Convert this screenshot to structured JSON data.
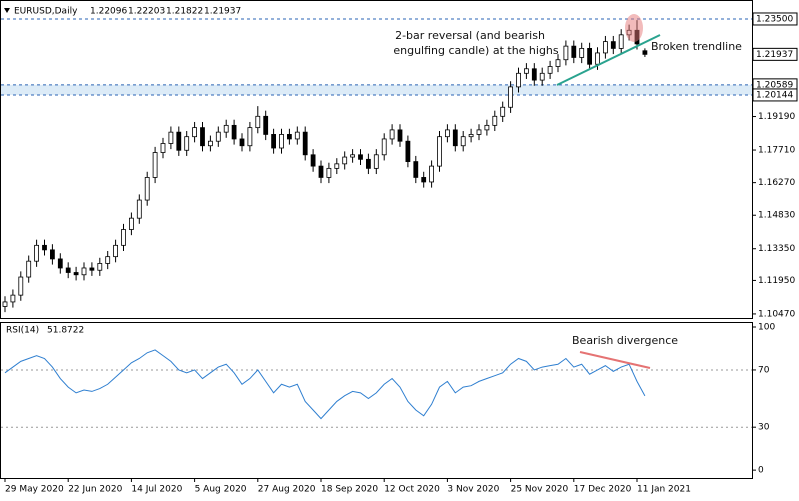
{
  "chart_data": [
    {
      "type": "candlestick",
      "title": "EURUSD,Daily",
      "annotations": [
        "2-bar reversal (and bearish",
        "engulfing candle) at the highs",
        "Broken trendline"
      ],
      "ylim": [
        1.1029,
        1.2425
      ],
      "yticks": [
        {
          "value": 1.1047,
          "label": "1.10470"
        },
        {
          "value": 1.1195,
          "label": "1.11950"
        },
        {
          "value": 1.1335,
          "label": "1.13350"
        },
        {
          "value": 1.1483,
          "label": "1.14830"
        },
        {
          "value": 1.1627,
          "label": "1.16270"
        },
        {
          "value": 1.1771,
          "label": "1.17710"
        },
        {
          "value": 1.1919,
          "label": "1.19190"
        }
      ],
      "levels": [
        {
          "value": 1.235,
          "label": "1.23500"
        },
        {
          "value": 1.20589,
          "label": "1.20589"
        },
        {
          "value": 1.20144,
          "label": "1.20144"
        }
      ],
      "ohlc": [
        [
          1.108,
          1.1125,
          1.1055,
          1.11
        ],
        [
          1.11,
          1.1155,
          1.1075,
          1.113
        ],
        [
          1.113,
          1.1235,
          1.1105,
          1.121
        ],
        [
          1.121,
          1.1305,
          1.1185,
          1.128
        ],
        [
          1.128,
          1.1375,
          1.1255,
          1.135
        ],
        [
          1.135,
          1.1375,
          1.1305,
          1.133
        ],
        [
          1.133,
          1.1355,
          1.1265,
          1.129
        ],
        [
          1.129,
          1.1315,
          1.1225,
          1.125
        ],
        [
          1.125,
          1.1275,
          1.1205,
          1.123
        ],
        [
          1.123,
          1.1255,
          1.1195,
          1.122
        ],
        [
          1.122,
          1.1275,
          1.1195,
          1.125
        ],
        [
          1.125,
          1.1275,
          1.1215,
          1.124
        ],
        [
          1.124,
          1.1295,
          1.1215,
          1.127
        ],
        [
          1.127,
          1.1325,
          1.1245,
          1.13
        ],
        [
          1.13,
          1.1375,
          1.1275,
          1.135
        ],
        [
          1.135,
          1.1445,
          1.1325,
          1.142
        ],
        [
          1.142,
          1.1495,
          1.1395,
          1.147
        ],
        [
          1.147,
          1.1575,
          1.1445,
          1.155
        ],
        [
          1.155,
          1.1675,
          1.1525,
          1.165
        ],
        [
          1.165,
          1.1785,
          1.1625,
          1.176
        ],
        [
          1.176,
          1.1825,
          1.1735,
          1.18
        ],
        [
          1.18,
          1.1875,
          1.1775,
          1.185
        ],
        [
          1.185,
          1.1875,
          1.1745,
          1.177
        ],
        [
          1.177,
          1.1855,
          1.1745,
          1.183
        ],
        [
          1.183,
          1.1895,
          1.1805,
          1.187
        ],
        [
          1.187,
          1.1895,
          1.1765,
          1.179
        ],
        [
          1.179,
          1.1835,
          1.1765,
          1.181
        ],
        [
          1.181,
          1.1875,
          1.1785,
          1.185
        ],
        [
          1.185,
          1.1905,
          1.1825,
          1.188
        ],
        [
          1.188,
          1.1905,
          1.1795,
          1.182
        ],
        [
          1.182,
          1.1845,
          1.1765,
          1.179
        ],
        [
          1.179,
          1.1895,
          1.1765,
          1.187
        ],
        [
          1.187,
          1.1965,
          1.1845,
          1.192
        ],
        [
          1.192,
          1.1945,
          1.1815,
          1.184
        ],
        [
          1.184,
          1.1865,
          1.1755,
          1.178
        ],
        [
          1.178,
          1.1865,
          1.1755,
          1.184
        ],
        [
          1.184,
          1.1865,
          1.1795,
          1.182
        ],
        [
          1.182,
          1.1875,
          1.1795,
          1.185
        ],
        [
          1.185,
          1.1875,
          1.1725,
          1.175
        ],
        [
          1.175,
          1.1775,
          1.1675,
          1.17
        ],
        [
          1.17,
          1.1725,
          1.1625,
          1.165
        ],
        [
          1.165,
          1.1715,
          1.1625,
          1.169
        ],
        [
          1.169,
          1.1735,
          1.1665,
          1.171
        ],
        [
          1.171,
          1.1765,
          1.1685,
          1.174
        ],
        [
          1.174,
          1.1775,
          1.1715,
          1.175
        ],
        [
          1.175,
          1.1775,
          1.1705,
          1.173
        ],
        [
          1.173,
          1.1755,
          1.1665,
          1.169
        ],
        [
          1.169,
          1.1775,
          1.1665,
          1.175
        ],
        [
          1.175,
          1.1845,
          1.1725,
          1.182
        ],
        [
          1.182,
          1.1885,
          1.1795,
          1.186
        ],
        [
          1.186,
          1.1885,
          1.1785,
          1.181
        ],
        [
          1.181,
          1.1835,
          1.1695,
          1.172
        ],
        [
          1.172,
          1.1745,
          1.1625,
          1.165
        ],
        [
          1.165,
          1.1675,
          1.1605,
          1.163
        ],
        [
          1.163,
          1.1725,
          1.1605,
          1.17
        ],
        [
          1.17,
          1.1855,
          1.1675,
          1.183
        ],
        [
          1.183,
          1.1885,
          1.1805,
          1.186
        ],
        [
          1.186,
          1.1885,
          1.1765,
          1.179
        ],
        [
          1.179,
          1.1855,
          1.1765,
          1.183
        ],
        [
          1.183,
          1.1865,
          1.1805,
          1.184
        ],
        [
          1.184,
          1.1885,
          1.1815,
          1.186
        ],
        [
          1.186,
          1.1905,
          1.1835,
          1.188
        ],
        [
          1.188,
          1.1945,
          1.1855,
          1.192
        ],
        [
          1.192,
          1.1985,
          1.1895,
          1.196
        ],
        [
          1.196,
          1.2075,
          1.1935,
          1.205
        ],
        [
          1.205,
          1.2135,
          1.2025,
          1.211
        ],
        [
          1.211,
          1.2155,
          1.2085,
          1.213
        ],
        [
          1.213,
          1.2155,
          1.2055,
          1.208
        ],
        [
          1.208,
          1.2135,
          1.2055,
          1.211
        ],
        [
          1.211,
          1.2165,
          1.2085,
          1.214
        ],
        [
          1.214,
          1.2195,
          1.2115,
          1.217
        ],
        [
          1.217,
          1.2255,
          1.2145,
          1.223
        ],
        [
          1.223,
          1.2255,
          1.2155,
          1.218
        ],
        [
          1.218,
          1.2245,
          1.2155,
          1.222
        ],
        [
          1.222,
          1.2245,
          1.2125,
          1.215
        ],
        [
          1.215,
          1.2225,
          1.2125,
          1.22
        ],
        [
          1.22,
          1.2275,
          1.2175,
          1.225
        ],
        [
          1.225,
          1.2275,
          1.2195,
          1.222
        ],
        [
          1.222,
          1.2305,
          1.2195,
          1.228
        ],
        [
          1.228,
          1.2325,
          1.2255,
          1.23
        ],
        [
          1.23,
          1.2345,
          1.2215,
          1.224
        ],
        [
          1.22096,
          1.22203,
          1.21822,
          1.21937
        ]
      ]
    },
    {
      "type": "line",
      "title": "RSI(14)",
      "annotations": [
        "Bearish divergence"
      ],
      "color": "#2f7fd0",
      "ylim": [
        -5.5,
        103.5
      ],
      "yticks": [
        0,
        30,
        70,
        100
      ],
      "levels": [
        70,
        30
      ],
      "xticks": [
        {
          "value": 0,
          "label": "29 May 2020"
        },
        {
          "value": 8,
          "label": "22 Jun 2020"
        },
        {
          "value": 16,
          "label": "14 Jul 2020"
        },
        {
          "value": 24,
          "label": "5 Aug 2020"
        },
        {
          "value": 32,
          "label": "27 Aug 2020"
        },
        {
          "value": 40,
          "label": "18 Sep 2020"
        },
        {
          "value": 48,
          "label": "12 Oct 2020"
        },
        {
          "value": 56,
          "label": "3 Nov 2020"
        },
        {
          "value": 64,
          "label": "25 Nov 2020"
        },
        {
          "value": 72,
          "label": "17 Dec 2020"
        },
        {
          "value": 80,
          "label": "11 Jan 2021"
        }
      ],
      "values": [
        68,
        72,
        76,
        78,
        80,
        78,
        72,
        64,
        58,
        54,
        56,
        55,
        57,
        60,
        65,
        70,
        75,
        78,
        82,
        84,
        80,
        76,
        70,
        68,
        70,
        64,
        68,
        72,
        74,
        68,
        60,
        64,
        70,
        62,
        54,
        60,
        58,
        60,
        48,
        42,
        36,
        42,
        48,
        52,
        55,
        54,
        50,
        54,
        60,
        64,
        58,
        48,
        42,
        38,
        46,
        58,
        62,
        54,
        58,
        59,
        62,
        64,
        66,
        68,
        74,
        78,
        76,
        70,
        72,
        73,
        74,
        78,
        72,
        74,
        67,
        70,
        73,
        69,
        72,
        74,
        62,
        51.8722
      ]
    }
  ]
}
